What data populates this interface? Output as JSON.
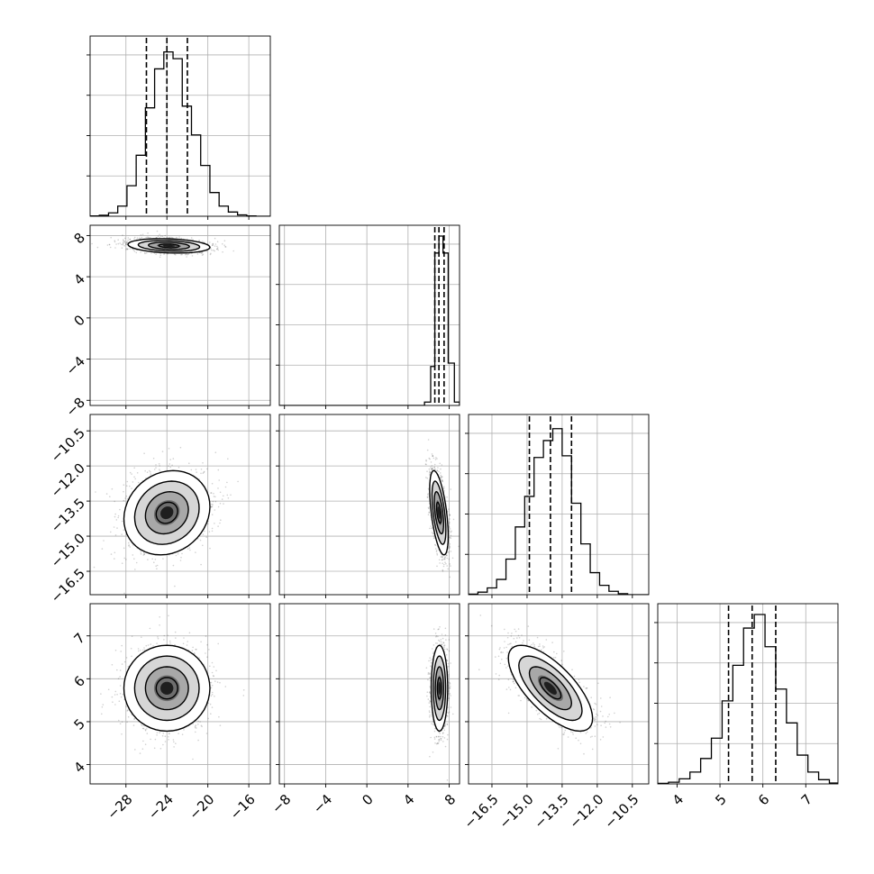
{
  "chart_data": {
    "type": "corner",
    "parameters": [
      {
        "ticks": [
          -28,
          -24,
          -20,
          -16
        ],
        "range": [
          -31.5,
          -13.9
        ],
        "median": -24.0,
        "q16": -26.0,
        "q84": -22.0
      },
      {
        "ticks": [
          -8,
          -4,
          0,
          4,
          8
        ],
        "range": [
          -8.5,
          9.0
        ],
        "median": 7.0,
        "q16": 6.6,
        "q84": 7.5
      },
      {
        "ticks": [
          -16.5,
          -15.0,
          -13.5,
          -12.0,
          -10.5
        ],
        "range": [
          -17.5,
          -9.8
        ],
        "median": -14.0,
        "q16": -14.9,
        "q84": -13.1
      },
      {
        "ticks": [
          4,
          5,
          6,
          7
        ],
        "range": [
          3.55,
          7.75
        ],
        "median": 5.75,
        "q16": 5.2,
        "q84": 6.3
      }
    ],
    "tick_text": {
      "p0": [
        "−28",
        "−24",
        "−20",
        "−16"
      ],
      "p1": [
        "−8",
        "−4",
        "0",
        "4",
        "8"
      ],
      "p2": [
        "−16.5",
        "−15.0",
        "−13.5",
        "−12.0",
        "−10.5"
      ],
      "p3": [
        "4",
        "5",
        "6",
        "7"
      ]
    },
    "histograms": [
      {
        "param": 0,
        "bins": [
          [
            -31.5,
            -30.6,
            0.002
          ],
          [
            -30.6,
            -29.7,
            0.006
          ],
          [
            -29.7,
            -28.8,
            0.02
          ],
          [
            -28.8,
            -27.9,
            0.06
          ],
          [
            -27.9,
            -27.0,
            0.18
          ],
          [
            -27.0,
            -26.1,
            0.36
          ],
          [
            -26.1,
            -25.2,
            0.64
          ],
          [
            -25.2,
            -24.3,
            0.87
          ],
          [
            -24.3,
            -23.4,
            0.97
          ],
          [
            -23.4,
            -22.5,
            0.93
          ],
          [
            -22.5,
            -21.6,
            0.65
          ],
          [
            -21.6,
            -20.7,
            0.48
          ],
          [
            -20.7,
            -19.8,
            0.3
          ],
          [
            -19.8,
            -18.9,
            0.14
          ],
          [
            -18.9,
            -18.0,
            0.06
          ],
          [
            -18.0,
            -17.1,
            0.025
          ],
          [
            -17.1,
            -16.2,
            0.008
          ],
          [
            -16.2,
            -15.3,
            0.002
          ]
        ]
      },
      {
        "param": 1,
        "bins": [
          [
            -8.5,
            5.6,
            0.0
          ],
          [
            5.6,
            6.2,
            0.02
          ],
          [
            6.2,
            6.6,
            0.23
          ],
          [
            6.6,
            7.0,
            0.9
          ],
          [
            7.0,
            7.4,
            1.0
          ],
          [
            7.4,
            7.9,
            0.9
          ],
          [
            7.9,
            8.5,
            0.25
          ],
          [
            8.5,
            9.0,
            0.02
          ]
        ]
      },
      {
        "param": 2,
        "bins": [
          [
            -17.5,
            -17.1,
            0.003
          ],
          [
            -17.1,
            -16.7,
            0.015
          ],
          [
            -16.7,
            -16.3,
            0.04
          ],
          [
            -16.3,
            -15.9,
            0.09
          ],
          [
            -15.9,
            -15.5,
            0.21
          ],
          [
            -15.5,
            -15.1,
            0.4
          ],
          [
            -15.1,
            -14.7,
            0.58
          ],
          [
            -14.7,
            -14.3,
            0.81
          ],
          [
            -14.3,
            -13.9,
            0.91
          ],
          [
            -13.9,
            -13.5,
            0.98
          ],
          [
            -13.5,
            -13.1,
            0.82
          ],
          [
            -13.1,
            -12.7,
            0.54
          ],
          [
            -12.7,
            -12.3,
            0.3
          ],
          [
            -12.3,
            -11.9,
            0.13
          ],
          [
            -11.9,
            -11.5,
            0.055
          ],
          [
            -11.5,
            -11.1,
            0.02
          ],
          [
            -11.1,
            -10.7,
            0.006
          ]
        ]
      },
      {
        "param": 3,
        "bins": [
          [
            3.55,
            3.8,
            0.003
          ],
          [
            3.8,
            4.05,
            0.01
          ],
          [
            4.05,
            4.3,
            0.03
          ],
          [
            4.3,
            4.55,
            0.07
          ],
          [
            4.55,
            4.8,
            0.15
          ],
          [
            4.8,
            5.05,
            0.27
          ],
          [
            5.05,
            5.3,
            0.49
          ],
          [
            5.3,
            5.55,
            0.7
          ],
          [
            5.55,
            5.8,
            0.92
          ],
          [
            5.8,
            6.05,
            1.0
          ],
          [
            6.05,
            6.3,
            0.81
          ],
          [
            6.3,
            6.55,
            0.56
          ],
          [
            6.55,
            6.8,
            0.36
          ],
          [
            6.8,
            7.05,
            0.17
          ],
          [
            7.05,
            7.3,
            0.07
          ],
          [
            7.3,
            7.55,
            0.025
          ],
          [
            7.55,
            7.75,
            0.005
          ]
        ]
      }
    ],
    "pairs": [
      {
        "row": 1,
        "col": 0,
        "mean": [
          -23.8,
          7.0
        ],
        "sd": [
          2.0,
          0.35
        ],
        "rho": -0.2
      },
      {
        "row": 2,
        "col": 0,
        "mean": [
          -24.0,
          -14.0
        ],
        "sd": [
          2.1,
          0.9
        ],
        "rho": 0.15
      },
      {
        "row": 2,
        "col": 1,
        "mean": [
          7.0,
          -14.0
        ],
        "sd": [
          0.45,
          0.9
        ],
        "rho": -0.55
      },
      {
        "row": 3,
        "col": 0,
        "mean": [
          -24.0,
          5.78
        ],
        "sd": [
          2.1,
          0.5
        ],
        "rho": 0.0
      },
      {
        "row": 3,
        "col": 1,
        "mean": [
          7.05,
          5.78
        ],
        "sd": [
          0.4,
          0.5
        ],
        "rho": 0.0
      },
      {
        "row": 3,
        "col": 2,
        "mean": [
          -14.0,
          5.78
        ],
        "sd": [
          0.9,
          0.5
        ],
        "rho": -0.7
      }
    ],
    "grid": true,
    "contour_levels": [
      "0.5-sigma",
      "1-sigma",
      "1.5-sigma",
      "2-sigma"
    ],
    "colors": {
      "line": "#000000",
      "grid": "#b0b0b0",
      "points": "#000000",
      "background": "#ffffff"
    }
  }
}
